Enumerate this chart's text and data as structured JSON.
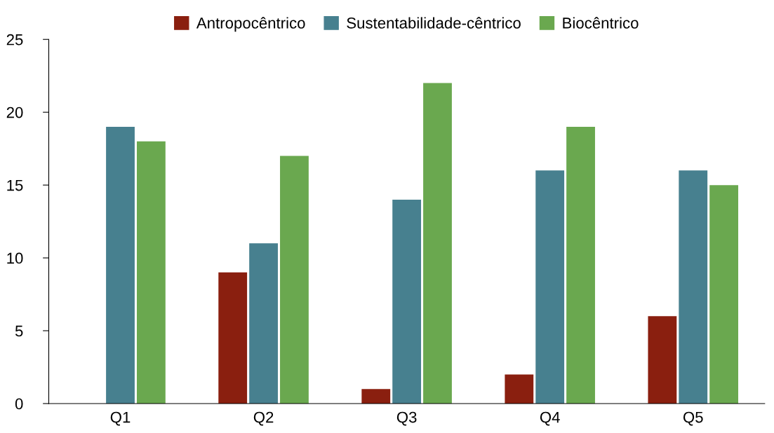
{
  "chart_data": {
    "type": "bar",
    "categories": [
      "Q1",
      "Q2",
      "Q3",
      "Q4",
      "Q5"
    ],
    "series": [
      {
        "name": "Antropocêntrico",
        "color": "#8a1f0f",
        "values": [
          0,
          9,
          1,
          2,
          6
        ]
      },
      {
        "name": "Sustentabilidade-cêntrico",
        "color": "#47808f",
        "values": [
          19,
          11,
          14,
          16,
          16
        ]
      },
      {
        "name": "Biocêntrico",
        "color": "#6aa84f",
        "values": [
          18,
          17,
          22,
          19,
          15
        ]
      }
    ],
    "ylim": [
      0,
      25
    ],
    "yticks": [
      0,
      5,
      10,
      15,
      20,
      25
    ],
    "grid": false,
    "legend": "top"
  }
}
